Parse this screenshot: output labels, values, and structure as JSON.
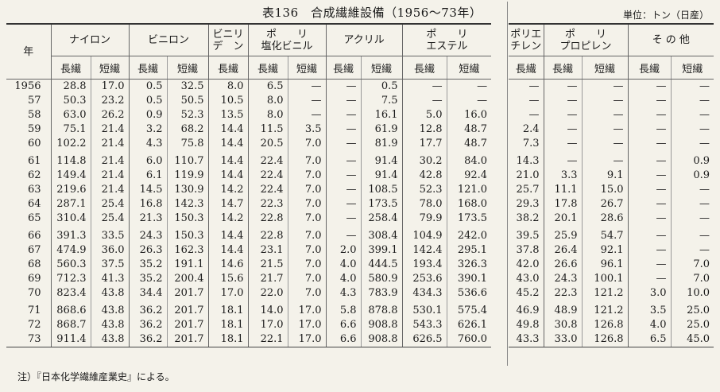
{
  "title": "表136　合成繊維設備（1956〜73年）",
  "unit": "単位：トン（日産）",
  "header": {
    "year": "年",
    "left_groups": [
      "ナイロン",
      "ビニロン",
      "ビニリ\nデ　ン",
      "ポ　　リ\n塩化ビニル",
      "アクリル",
      "ポ　　リ\nエステル"
    ],
    "right_groups": [
      "ポリエ\nチレン",
      "ポ　　リ\nプロピレン",
      "そ の 他"
    ],
    "long": "長繊",
    "short": "短繊"
  },
  "rows": [
    {
      "year": "1956",
      "v": [
        "28.8",
        "17.0",
        "0.5",
        "32.5",
        "8.0",
        "6.5",
        "—",
        "—",
        "0.5",
        "—",
        "—",
        "—",
        "—",
        "—",
        "—",
        "—"
      ]
    },
    {
      "year": "57",
      "v": [
        "50.3",
        "23.2",
        "0.5",
        "50.5",
        "10.5",
        "8.0",
        "—",
        "—",
        "7.5",
        "—",
        "—",
        "—",
        "—",
        "—",
        "—",
        "—"
      ]
    },
    {
      "year": "58",
      "v": [
        "63.0",
        "26.2",
        "0.9",
        "52.3",
        "13.5",
        "8.0",
        "—",
        "—",
        "16.1",
        "5.0",
        "16.0",
        "—",
        "—",
        "—",
        "—",
        "—"
      ]
    },
    {
      "year": "59",
      "v": [
        "75.1",
        "21.4",
        "3.2",
        "68.2",
        "14.4",
        "11.5",
        "3.5",
        "—",
        "61.9",
        "12.8",
        "48.7",
        "2.4",
        "—",
        "—",
        "—",
        "—"
      ]
    },
    {
      "year": "60",
      "v": [
        "102.2",
        "21.4",
        "4.3",
        "75.8",
        "14.4",
        "20.5",
        "7.0",
        "—",
        "81.9",
        "17.7",
        "48.7",
        "7.3",
        "—",
        "—",
        "—",
        "—"
      ]
    },
    {
      "year": "61",
      "v": [
        "114.8",
        "21.4",
        "6.0",
        "110.7",
        "14.4",
        "22.4",
        "7.0",
        "—",
        "91.4",
        "30.2",
        "84.0",
        "14.3",
        "—",
        "—",
        "—",
        "0.9"
      ]
    },
    {
      "year": "62",
      "v": [
        "149.4",
        "21.4",
        "6.1",
        "119.9",
        "14.4",
        "22.4",
        "7.0",
        "—",
        "91.4",
        "42.8",
        "92.4",
        "21.0",
        "3.3",
        "9.1",
        "—",
        "0.9"
      ]
    },
    {
      "year": "63",
      "v": [
        "219.6",
        "21.4",
        "14.5",
        "130.9",
        "14.2",
        "22.4",
        "7.0",
        "—",
        "108.5",
        "52.3",
        "121.0",
        "25.7",
        "11.1",
        "15.0",
        "—",
        "—"
      ]
    },
    {
      "year": "64",
      "v": [
        "287.1",
        "25.4",
        "16.8",
        "142.3",
        "14.7",
        "22.3",
        "7.0",
        "—",
        "173.5",
        "78.0",
        "168.0",
        "29.3",
        "17.8",
        "26.7",
        "—",
        "—"
      ]
    },
    {
      "year": "65",
      "v": [
        "310.4",
        "25.4",
        "21.3",
        "150.3",
        "14.2",
        "22.8",
        "7.0",
        "—",
        "258.4",
        "79.9",
        "173.5",
        "38.2",
        "20.1",
        "28.6",
        "—",
        "—"
      ]
    },
    {
      "year": "66",
      "v": [
        "391.3",
        "33.5",
        "24.3",
        "150.3",
        "14.4",
        "22.8",
        "7.0",
        "—",
        "308.4",
        "104.9",
        "242.0",
        "39.5",
        "25.9",
        "54.7",
        "—",
        "—"
      ]
    },
    {
      "year": "67",
      "v": [
        "474.9",
        "36.0",
        "26.3",
        "162.3",
        "14.4",
        "23.1",
        "7.0",
        "2.0",
        "399.1",
        "142.4",
        "295.1",
        "37.8",
        "26.4",
        "92.1",
        "—",
        "—"
      ]
    },
    {
      "year": "68",
      "v": [
        "560.3",
        "37.5",
        "35.2",
        "191.1",
        "14.6",
        "21.5",
        "7.0",
        "4.0",
        "444.5",
        "193.4",
        "326.3",
        "42.0",
        "26.6",
        "96.1",
        "—",
        "7.0"
      ]
    },
    {
      "year": "69",
      "v": [
        "712.3",
        "41.3",
        "35.2",
        "200.4",
        "15.6",
        "21.7",
        "7.0",
        "4.0",
        "580.9",
        "253.6",
        "390.1",
        "43.0",
        "24.3",
        "100.1",
        "—",
        "7.0"
      ]
    },
    {
      "year": "70",
      "v": [
        "823.4",
        "43.8",
        "34.4",
        "201.7",
        "17.0",
        "22.0",
        "7.0",
        "4.3",
        "783.9",
        "434.3",
        "536.6",
        "45.2",
        "22.3",
        "121.2",
        "3.0",
        "10.0"
      ]
    },
    {
      "year": "71",
      "v": [
        "868.6",
        "43.8",
        "36.2",
        "201.7",
        "18.1",
        "14.0",
        "17.0",
        "5.8",
        "878.8",
        "530.1",
        "575.4",
        "46.9",
        "48.9",
        "121.2",
        "3.5",
        "25.0"
      ]
    },
    {
      "year": "72",
      "v": [
        "868.7",
        "43.8",
        "36.2",
        "201.7",
        "18.1",
        "17.0",
        "17.0",
        "6.6",
        "908.8",
        "543.3",
        "626.1",
        "49.8",
        "30.8",
        "126.8",
        "4.0",
        "25.0"
      ]
    },
    {
      "year": "73",
      "v": [
        "911.4",
        "43.8",
        "36.2",
        "201.7",
        "18.1",
        "22.1",
        "17.0",
        "6.6",
        "908.8",
        "626.5",
        "760.0",
        "43.3",
        "33.0",
        "126.8",
        "6.5",
        "45.0"
      ]
    }
  ],
  "note": "注）『日本化学繊維産業史』による。"
}
